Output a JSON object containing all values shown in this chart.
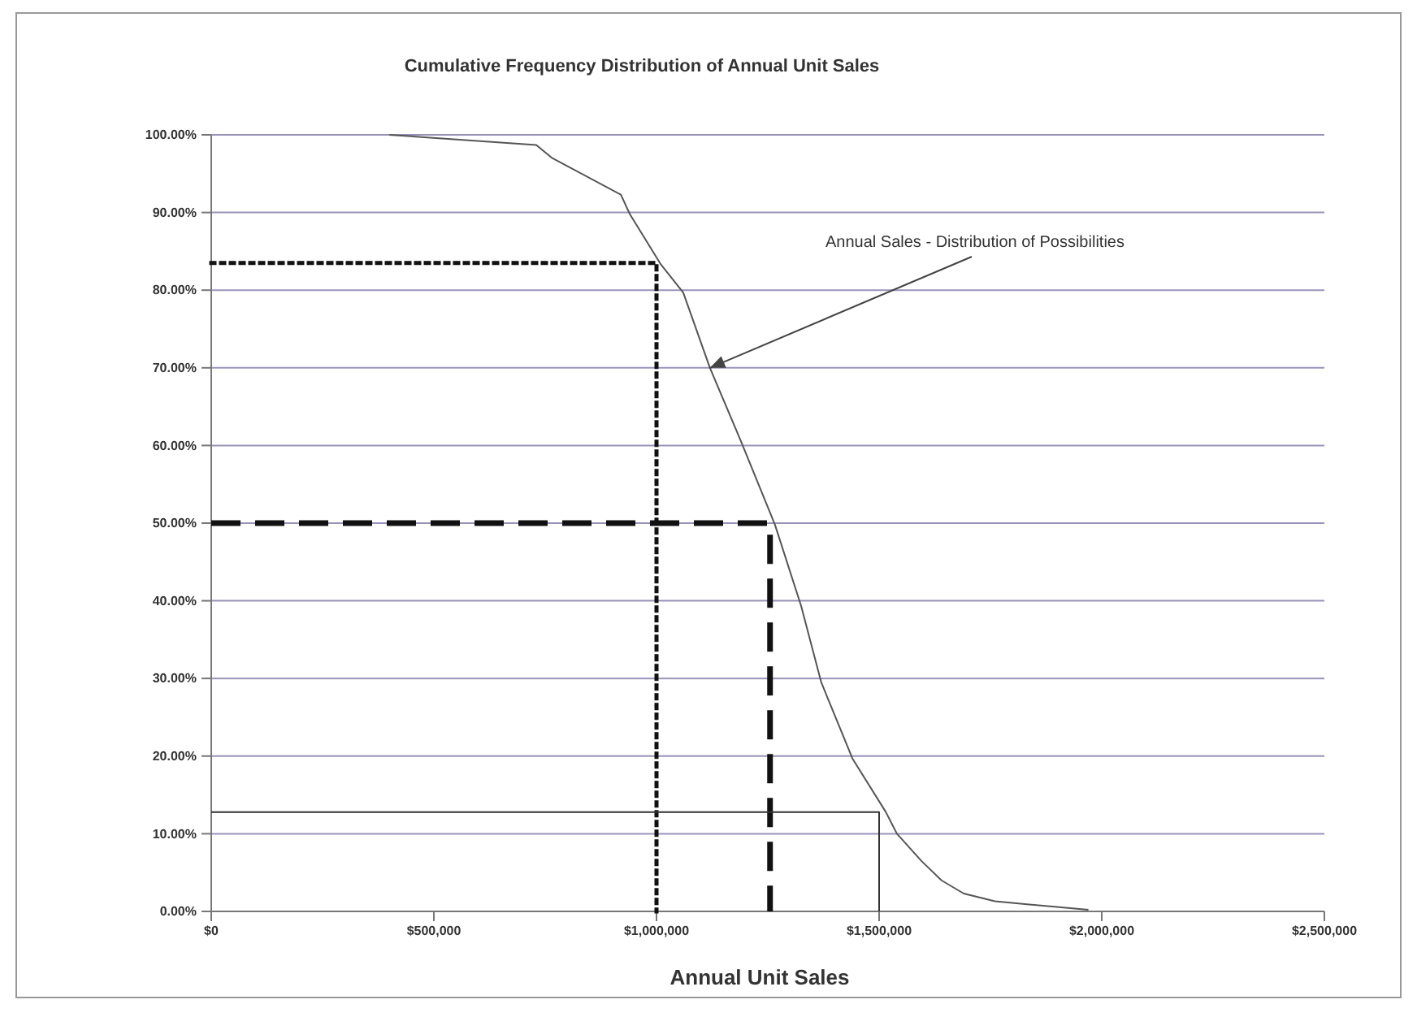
{
  "chart_data": {
    "type": "line",
    "title": "Cumulative Frequency Distribution of Annual Unit Sales",
    "xlabel": "Annual Unit Sales",
    "xlim": [
      0,
      2500000
    ],
    "ylim": [
      0,
      100
    ],
    "xticks": [
      {
        "value": 0,
        "label": "$0"
      },
      {
        "value": 500000,
        "label": "$500,000"
      },
      {
        "value": 1000000,
        "label": "$1,000,000"
      },
      {
        "value": 1500000,
        "label": "$1,500,000"
      },
      {
        "value": 2000000,
        "label": "$2,000,000"
      },
      {
        "value": 2500000,
        "label": "$2,500,000"
      }
    ],
    "yticks": [
      {
        "value": 0,
        "label": "0.00%"
      },
      {
        "value": 10,
        "label": "10.00%"
      },
      {
        "value": 20,
        "label": "20.00%"
      },
      {
        "value": 30,
        "label": "30.00%"
      },
      {
        "value": 40,
        "label": "40.00%"
      },
      {
        "value": 50,
        "label": "50.00%"
      },
      {
        "value": 60,
        "label": "60.00%"
      },
      {
        "value": 70,
        "label": "70.00%"
      },
      {
        "value": 80,
        "label": "80.00%"
      },
      {
        "value": 90,
        "label": "90.00%"
      },
      {
        "value": 100,
        "label": "100.00%"
      }
    ],
    "grid": "y",
    "series": [
      {
        "color": "#555555",
        "line_style": "solid",
        "x": [
          400000,
          730000,
          766000,
          920000,
          940000,
          1010000,
          1060000,
          1120000,
          1190000,
          1266000,
          1325000,
          1370000,
          1440000,
          1515000,
          1540000,
          1595000,
          1640000,
          1690000,
          1760000,
          1970000
        ],
        "values": [
          100,
          98.7,
          97,
          92.3,
          89.8,
          83.3,
          79.7,
          70,
          60.5,
          49.8,
          39.3,
          29.5,
          19.7,
          12.8,
          10,
          6.5,
          4,
          2.3,
          1.3,
          0.2
        ]
      },
      {
        "color": "#111111",
        "line_style": "dotted",
        "x": [
          0,
          1000000,
          1000000
        ],
        "values": [
          83.5,
          83.5,
          0
        ]
      },
      {
        "color": "#111111",
        "line_style": "dashed",
        "x": [
          0,
          1255000,
          1255000
        ],
        "values": [
          50,
          50,
          0
        ]
      },
      {
        "color": "#333333",
        "line_style": "solid",
        "x": [
          0,
          1500000,
          1500000
        ],
        "values": [
          12.8,
          12.8,
          0
        ]
      }
    ],
    "annotations": [
      {
        "text": "Annual Sales - Distribution of Possibilities",
        "x": 1120000,
        "y": 70
      }
    ]
  }
}
